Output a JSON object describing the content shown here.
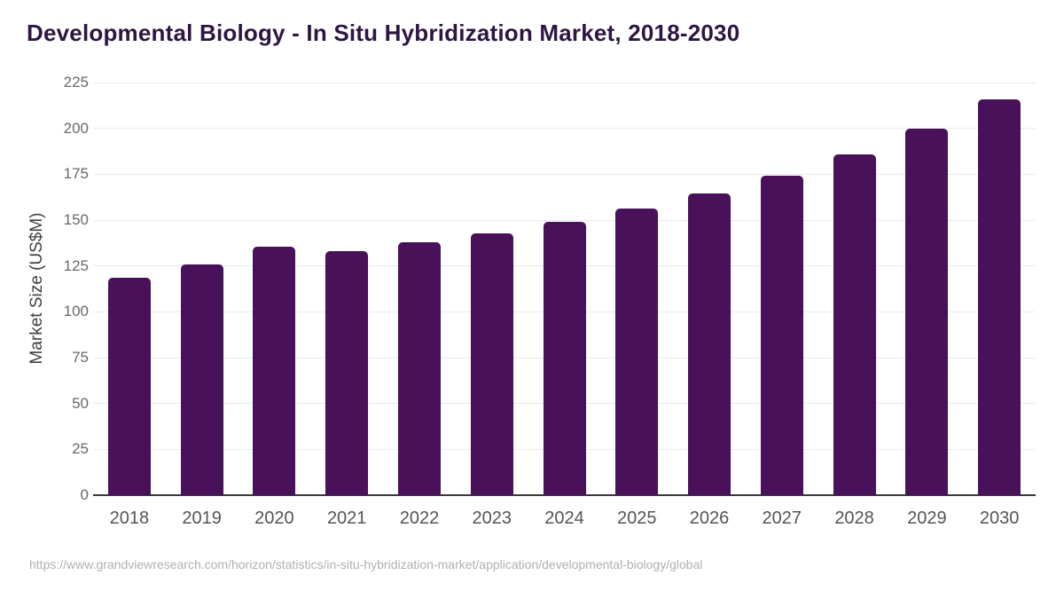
{
  "header": {
    "title": "Developmental Biology - In Situ Hybridization Market, 2018-2030"
  },
  "footer": {
    "source_url": "https://www.grandviewresearch.com/horizon/statistics/in-situ-hybridization-market/application/developmental-biology/global"
  },
  "chart_data": {
    "type": "bar",
    "title": "Developmental Biology - In Situ Hybridization Market, 2018-2030",
    "xlabel": "",
    "ylabel": "Market Size (US$M)",
    "categories": [
      "2018",
      "2019",
      "2020",
      "2021",
      "2022",
      "2023",
      "2024",
      "2025",
      "2026",
      "2027",
      "2028",
      "2029",
      "2030"
    ],
    "values": [
      118.5,
      125.7,
      135.5,
      133.3,
      137.7,
      142.9,
      149.0,
      156.5,
      164.7,
      174.4,
      186.0,
      199.7,
      215.9
    ],
    "ylim": [
      0,
      225
    ],
    "ytick_step": 25,
    "grid": true,
    "legend_position": "none",
    "bar_color": "#491159"
  },
  "colors": {
    "title_text": "#2d1544",
    "bar_fill": "#491159",
    "gridline": "#ebebeb",
    "axis_line": "#3a3a3a",
    "y_tick_text": "#686868",
    "x_tick_text": "#545454",
    "y_axis_title_text": "#3f3f3f",
    "source_text": "#b0b0b0",
    "background": "#ffffff"
  }
}
